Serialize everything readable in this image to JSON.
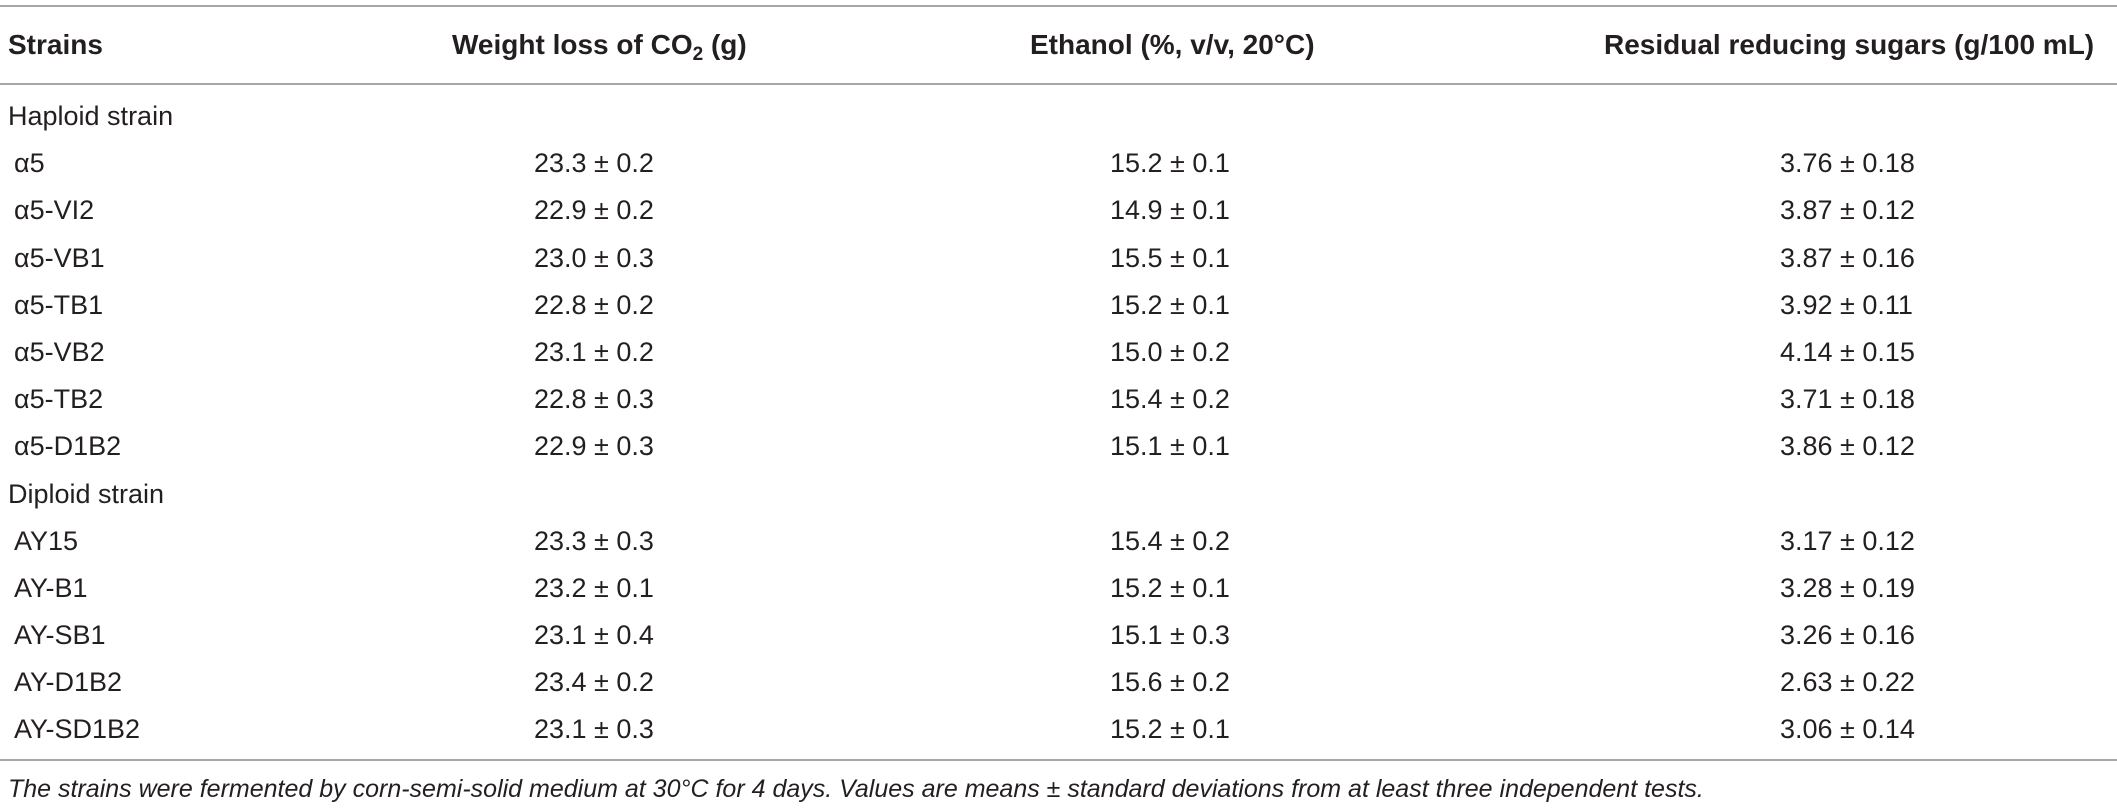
{
  "table": {
    "headers": {
      "strains": "Strains",
      "weight_prefix": "Weight loss of CO",
      "weight_sub": "2",
      "weight_suffix": " (g)",
      "ethanol": "Ethanol (%, v/v, 20°C)",
      "sugars": "Residual reducing sugars (g/100 mL)"
    },
    "sections": [
      {
        "label": "Haploid strain",
        "rows": [
          {
            "strain": "α5",
            "weight": "23.3 ± 0.2",
            "ethanol": "15.2 ± 0.1",
            "sugars": "3.76 ± 0.18"
          },
          {
            "strain": "α5-VI2",
            "weight": "22.9 ± 0.2",
            "ethanol": "14.9 ± 0.1",
            "sugars": "3.87 ± 0.12"
          },
          {
            "strain": "α5-VB1",
            "weight": "23.0 ± 0.3",
            "ethanol": "15.5 ± 0.1",
            "sugars": "3.87 ± 0.16"
          },
          {
            "strain": "α5-TB1",
            "weight": "22.8 ± 0.2",
            "ethanol": "15.2 ± 0.1",
            "sugars": "3.92 ± 0.11"
          },
          {
            "strain": "α5-VB2",
            "weight": "23.1 ± 0.2",
            "ethanol": "15.0 ± 0.2",
            "sugars": "4.14 ± 0.15"
          },
          {
            "strain": "α5-TB2",
            "weight": "22.8 ± 0.3",
            "ethanol": "15.4 ± 0.2",
            "sugars": "3.71 ± 0.18"
          },
          {
            "strain": "α5-D1B2",
            "weight": "22.9 ± 0.3",
            "ethanol": "15.1 ± 0.1",
            "sugars": "3.86 ± 0.12"
          }
        ]
      },
      {
        "label": "Diploid strain",
        "rows": [
          {
            "strain": "AY15",
            "weight": "23.3 ± 0.3",
            "ethanol": "15.4 ± 0.2",
            "sugars": "3.17 ± 0.12"
          },
          {
            "strain": "AY-B1",
            "weight": "23.2 ± 0.1",
            "ethanol": "15.2 ± 0.1",
            "sugars": "3.28 ± 0.19"
          },
          {
            "strain": "AY-SB1",
            "weight": "23.1 ± 0.4",
            "ethanol": "15.1 ± 0.3",
            "sugars": "3.26 ± 0.16"
          },
          {
            "strain": "AY-D1B2",
            "weight": "23.4 ± 0.2",
            "ethanol": "15.6 ± 0.2",
            "sugars": "2.63 ± 0.22"
          },
          {
            "strain": "AY-SD1B2",
            "weight": "23.1 ± 0.3",
            "ethanol": "15.2 ± 0.1",
            "sugars": "3.06 ± 0.14"
          }
        ]
      }
    ],
    "footnote": "The strains were fermented by corn-semi-solid medium at 30°C for 4 days. Values are means ± standard deviations from at least three independent tests."
  }
}
